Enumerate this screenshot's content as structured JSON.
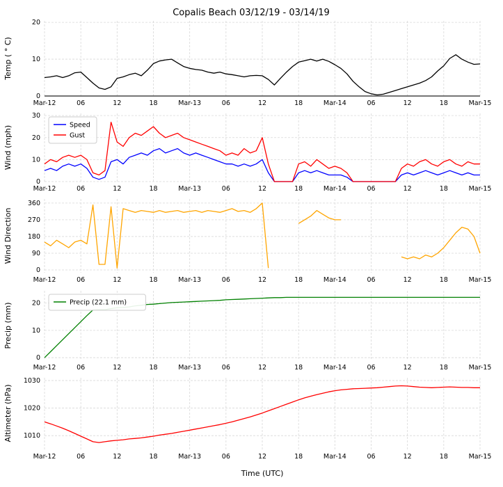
{
  "chart_data": {
    "type": "line",
    "title": "Copalis Beach 03/12/19 - 03/14/19",
    "xlabel": "Time (UTC)",
    "x_unit": "hours since Mar-12 00:00 UTC",
    "x_max": 72,
    "grid": true,
    "legend_position": "upper left",
    "x_ticks": {
      "positions": [
        0,
        6,
        12,
        18,
        24,
        30,
        36,
        42,
        48,
        54,
        60,
        66,
        72
      ],
      "labels": [
        "Mar-12",
        "06",
        "12",
        "18",
        "Mar-13",
        "06",
        "12",
        "18",
        "Mar-14",
        "06",
        "12",
        "18",
        "Mar-15"
      ]
    },
    "subplots": [
      {
        "ylabel": "Temp ( ° C)",
        "ylim": [
          0,
          20.4
        ],
        "yticks": [
          0,
          10,
          20
        ],
        "zero_line": true,
        "series": [
          {
            "name": "Temp",
            "color": "#000000",
            "values": [
              5.0,
              5.2,
              5.5,
              5.0,
              5.5,
              6.3,
              6.5,
              5.0,
              3.5,
              2.2,
              1.8,
              2.5,
              4.8,
              5.2,
              5.8,
              6.2,
              5.5,
              7.0,
              8.8,
              9.5,
              9.8,
              10.0,
              9.0,
              8.0,
              7.5,
              7.2,
              7.0,
              6.5,
              6.2,
              6.5,
              6.0,
              5.8,
              5.5,
              5.2,
              5.5,
              5.6,
              5.5,
              4.5,
              3.0,
              4.8,
              6.5,
              8.0,
              9.2,
              9.6,
              10.0,
              9.5,
              10.0,
              9.4,
              8.5,
              7.5,
              6.0,
              4.0,
              2.5,
              1.2,
              0.6,
              0.3,
              0.5,
              1.0,
              1.5,
              2.0,
              2.5,
              3.0,
              3.5,
              4.2,
              5.2,
              6.8,
              8.2,
              10.2,
              11.2,
              10.0,
              9.2,
              8.6,
              8.7
            ]
          }
        ]
      },
      {
        "ylabel": "Wind (mph)",
        "ylim": [
          0,
          31
        ],
        "yticks": [
          0,
          10,
          20,
          30
        ],
        "legend": true,
        "series": [
          {
            "name": "Speed",
            "color": "#0000ff",
            "values": [
              5,
              6,
              5,
              7,
              8,
              7,
              8,
              6,
              2,
              1,
              2,
              9,
              10,
              8,
              11,
              12,
              13,
              12,
              14,
              15,
              13,
              14,
              15,
              13,
              12,
              13,
              12,
              11,
              10,
              9,
              8,
              8,
              7,
              8,
              7,
              8,
              10,
              4,
              0,
              0,
              0,
              0,
              4,
              5,
              4,
              5,
              4,
              3,
              3,
              3,
              2,
              0,
              0,
              0,
              0,
              0,
              0,
              0,
              0,
              3,
              4,
              3,
              4,
              5,
              4,
              3,
              4,
              5,
              4,
              3,
              4,
              3,
              3
            ]
          },
          {
            "name": "Gust",
            "color": "#ff0000",
            "values": [
              8,
              10,
              9,
              11,
              12,
              11,
              12,
              10,
              4,
              3,
              5,
              27,
              18,
              16,
              20,
              22,
              21,
              23,
              25,
              22,
              20,
              21,
              22,
              20,
              19,
              18,
              17,
              16,
              15,
              14,
              12,
              13,
              12,
              15,
              13,
              14,
              20,
              8,
              0,
              0,
              0,
              0,
              8,
              9,
              7,
              10,
              8,
              6,
              7,
              6,
              4,
              0,
              0,
              0,
              0,
              0,
              0,
              0,
              0,
              6,
              8,
              7,
              9,
              10,
              8,
              7,
              9,
              10,
              8,
              7,
              9,
              8,
              8
            ]
          }
        ]
      },
      {
        "ylabel": "Wind Direction",
        "ylim": [
          -15,
          382
        ],
        "yticks": [
          0,
          90,
          180,
          270,
          360
        ],
        "series": [
          {
            "name": "Direction",
            "color": "#ffa500",
            "values": [
              150,
              130,
              160,
              140,
              120,
              150,
              160,
              140,
              350,
              30,
              30,
              340,
              10,
              330,
              320,
              310,
              320,
              315,
              310,
              320,
              310,
              315,
              320,
              310,
              315,
              320,
              310,
              320,
              315,
              310,
              320,
              330,
              315,
              320,
              310,
              330,
              360,
              10,
              null,
              null,
              null,
              null,
              250,
              270,
              290,
              320,
              300,
              280,
              270,
              270,
              null,
              null,
              null,
              null,
              null,
              null,
              null,
              null,
              null,
              70,
              60,
              70,
              60,
              80,
              70,
              90,
              120,
              160,
              200,
              230,
              220,
              180,
              90
            ]
          }
        ]
      },
      {
        "ylabel": "Precip (mm)",
        "ylim": [
          -1,
          24.5
        ],
        "yticks": [
          0,
          10,
          20
        ],
        "legend": true,
        "series": [
          {
            "name": "Precip (22.1 mm)",
            "color": "#008000",
            "values": [
              0,
              2.2,
              4.4,
              6.6,
              8.8,
              11.0,
              13.2,
              15.4,
              17.5,
              17.6,
              17.6,
              18.0,
              18.3,
              18.4,
              18.6,
              19.0,
              19.2,
              19.5,
              19.6,
              19.8,
              20.0,
              20.2,
              20.3,
              20.4,
              20.5,
              20.6,
              20.7,
              20.8,
              20.9,
              21.0,
              21.2,
              21.3,
              21.4,
              21.5,
              21.6,
              21.7,
              21.8,
              21.9,
              22.0,
              22.0,
              22.1,
              22.1,
              22.1,
              22.1,
              22.1,
              22.1,
              22.1,
              22.1,
              22.1,
              22.1,
              22.1,
              22.1,
              22.1,
              22.1,
              22.1,
              22.1,
              22.1,
              22.1,
              22.1,
              22.1,
              22.1,
              22.1,
              22.1,
              22.1,
              22.1,
              22.1,
              22.1,
              22.1,
              22.1,
              22.1,
              22.1,
              22.1,
              22.1
            ]
          }
        ]
      },
      {
        "ylabel": "Altimeter (hPa)",
        "ylim": [
          1005,
          1031
        ],
        "yticks": [
          1010,
          1020,
          1030
        ],
        "series": [
          {
            "name": "Altimeter",
            "color": "#ff0000",
            "values": [
              1015.0,
              1014.3,
              1013.5,
              1012.7,
              1011.8,
              1010.8,
              1009.8,
              1008.8,
              1007.8,
              1007.5,
              1007.8,
              1008.1,
              1008.3,
              1008.5,
              1008.8,
              1009.0,
              1009.2,
              1009.5,
              1009.8,
              1010.2,
              1010.5,
              1010.8,
              1011.2,
              1011.6,
              1012.0,
              1012.4,
              1012.8,
              1013.2,
              1013.6,
              1014.0,
              1014.5,
              1015.0,
              1015.6,
              1016.2,
              1016.8,
              1017.5,
              1018.2,
              1019.0,
              1019.8,
              1020.6,
              1021.4,
              1022.2,
              1023.0,
              1023.7,
              1024.3,
              1024.9,
              1025.4,
              1025.9,
              1026.3,
              1026.6,
              1026.8,
              1027.0,
              1027.1,
              1027.2,
              1027.3,
              1027.4,
              1027.6,
              1027.8,
              1028.0,
              1028.1,
              1028.0,
              1027.8,
              1027.6,
              1027.5,
              1027.4,
              1027.5,
              1027.6,
              1027.7,
              1027.6,
              1027.5,
              1027.5,
              1027.4,
              1027.4
            ]
          }
        ]
      }
    ],
    "style": {
      "grid_color": "#d8d8d8",
      "zero_line_color": "#222222",
      "legend_border": "#cccccc",
      "tick_color": "#000000"
    }
  }
}
